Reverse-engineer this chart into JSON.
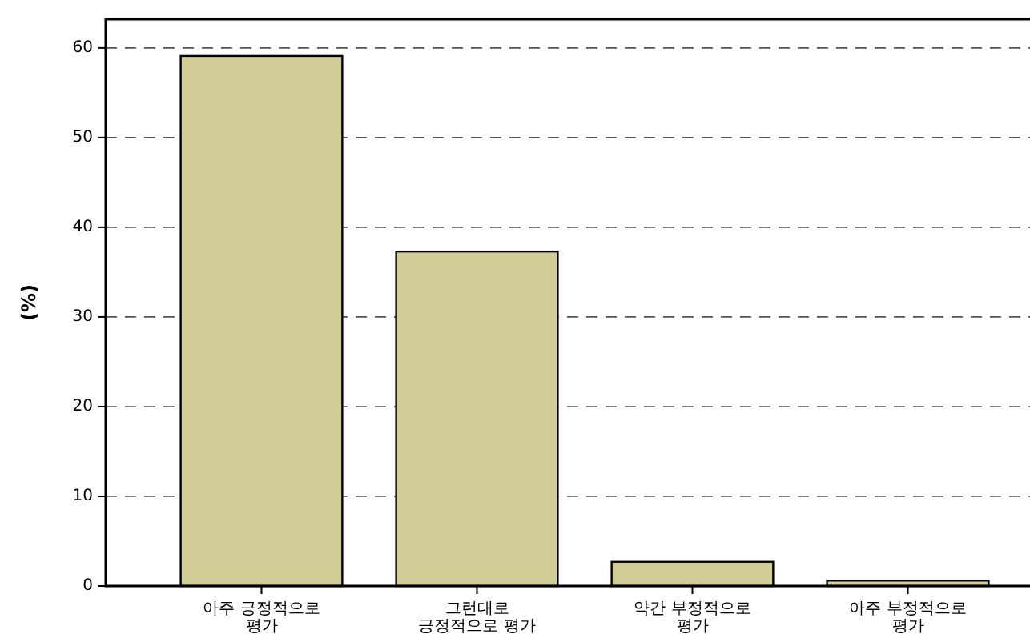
{
  "chart_data": {
    "type": "bar",
    "categories": [
      "아주 긍정적으로\n평가",
      "그런대로\n긍정적으로 평가",
      "약간 부정적으로\n평가",
      "아주 부정적으로\n평가"
    ],
    "values": [
      59.1,
      37.3,
      2.7,
      0.6
    ],
    "color": "#d2cc96",
    "ylabel": "(%)",
    "ylim": [
      0,
      63.2
    ],
    "yticks": [
      0,
      10,
      20,
      30,
      40,
      50,
      60
    ],
    "grid": "y"
  }
}
